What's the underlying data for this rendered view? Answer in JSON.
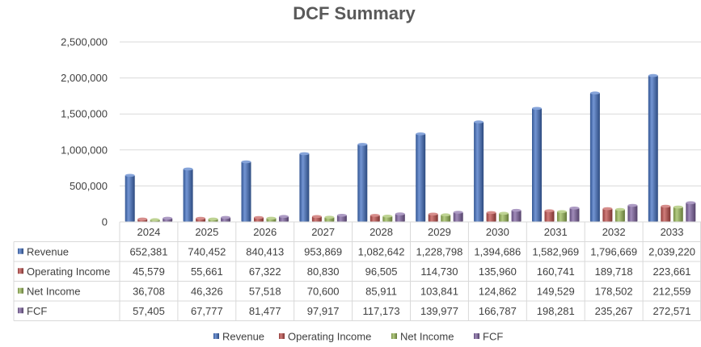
{
  "chart_data": {
    "type": "bar",
    "title": "DCF Summary",
    "categories": [
      "2024",
      "2025",
      "2026",
      "2027",
      "2028",
      "2029",
      "2030",
      "2031",
      "2032",
      "2033"
    ],
    "ylim": [
      0,
      2500000
    ],
    "yticks": [
      0,
      500000,
      1000000,
      1500000,
      2000000,
      2500000
    ],
    "ytick_labels": [
      "0",
      "500,000",
      "1,000,000",
      "1,500,000",
      "2,000,000",
      "2,500,000"
    ],
    "grid": true,
    "legend": "bottom",
    "data_table": true,
    "series": [
      {
        "name": "Revenue",
        "color": "#4472C4",
        "values": [
          652381,
          740452,
          840413,
          953869,
          1082642,
          1228798,
          1394686,
          1582969,
          1796669,
          2039220
        ],
        "labels": [
          "652,381",
          "740,452",
          "840,413",
          "953,869",
          "1,082,642",
          "1,228,798",
          "1,394,686",
          "1,582,969",
          "1,796,669",
          "2,039,220"
        ]
      },
      {
        "name": "Operating Income",
        "color": "#C0504D",
        "values": [
          45579,
          55661,
          67322,
          80830,
          96505,
          114730,
          135960,
          160741,
          189718,
          223661
        ],
        "labels": [
          "45,579",
          "55,661",
          "67,322",
          "80,830",
          "96,505",
          "114,730",
          "135,960",
          "160,741",
          "189,718",
          "223,661"
        ]
      },
      {
        "name": "Net Income",
        "color": "#9BBB59",
        "values": [
          36708,
          46326,
          57518,
          70600,
          85911,
          103841,
          124862,
          149529,
          178502,
          212559
        ],
        "labels": [
          "36,708",
          "46,326",
          "57,518",
          "70,600",
          "85,911",
          "103,841",
          "124,862",
          "149,529",
          "178,502",
          "212,559"
        ]
      },
      {
        "name": "FCF",
        "color": "#8064A2",
        "values": [
          57405,
          67777,
          81477,
          97917,
          117173,
          139977,
          166787,
          198281,
          235267,
          272571
        ],
        "labels": [
          "57,405",
          "67,777",
          "81,477",
          "97,917",
          "117,173",
          "139,977",
          "166,787",
          "198,281",
          "235,267",
          "272,571"
        ]
      }
    ]
  }
}
